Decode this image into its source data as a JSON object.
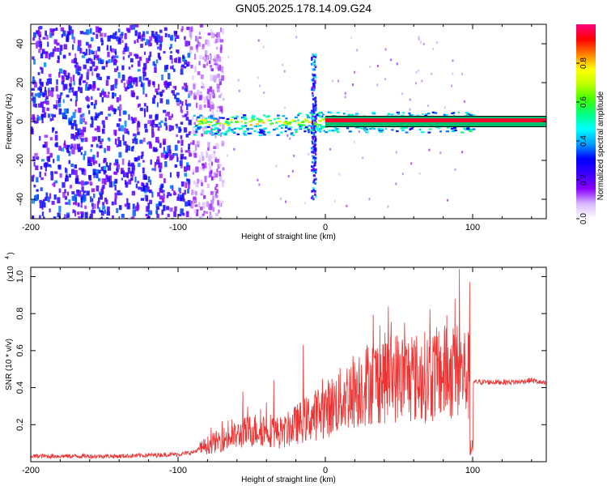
{
  "title": "GN05.2025.178.14.09.G24",
  "chart_data": [
    {
      "type": "heatmap",
      "xlabel": "Height of straight line (km)",
      "ylabel": "Frequency (Hz)",
      "xlim": [
        -200,
        150
      ],
      "ylim": [
        -50,
        50
      ],
      "xticks": [
        -200,
        -100,
        0,
        100
      ],
      "yticks": [
        -40,
        -20,
        0,
        20,
        40
      ],
      "colorbar": {
        "label": "Normalized spectral amplitude",
        "range": [
          0.0,
          1.0
        ],
        "ticks": [
          "0.0",
          "0.2",
          "0.4",
          "0.6",
          "0.8"
        ],
        "colors": [
          "#ffffff",
          "#d8b8ff",
          "#8a00ff",
          "#3a00ff",
          "#0000ff",
          "#00a0ff",
          "#00ffff",
          "#00ff80",
          "#40ff00",
          "#c0ff00",
          "#ffff00",
          "#ff8000",
          "#ff0000",
          "#ff0080"
        ]
      },
      "regions": [
        {
          "name": "noise",
          "x": [
            -200,
            -78
          ],
          "freq": [
            -50,
            50
          ],
          "amplitude": 0.25
        },
        {
          "name": "signal-trace",
          "x": [
            -90,
            100
          ],
          "freq": [
            -4,
            4
          ],
          "amplitude": 0.75
        },
        {
          "name": "spike",
          "x": [
            -10,
            -7
          ],
          "freq": [
            -40,
            35
          ],
          "amplitude": 0.3
        },
        {
          "name": "tone",
          "x": [
            0,
            150
          ],
          "freq": [
            0,
            1
          ],
          "amplitude": 0.95
        }
      ]
    },
    {
      "type": "line",
      "xlabel": "Height of straight line (km)",
      "ylabel": "SNR (10 * v/v)",
      "yunit": "(x10^4)",
      "xlim": [
        -200,
        150
      ],
      "ylim": [
        0.0,
        1.05
      ],
      "xticks": [
        -200,
        -100,
        0,
        100
      ],
      "yticks": [
        0.2,
        0.4,
        0.6,
        0.8,
        1.0
      ],
      "color": "#ee3333",
      "series": [
        {
          "x": [
            -200,
            -180,
            -160,
            -140,
            -120,
            -100,
            -90,
            -80,
            -70,
            -60,
            -50,
            -40,
            -30,
            -20,
            -10,
            0,
            10,
            20,
            30,
            40,
            50,
            60,
            70,
            80,
            90,
            95,
            100,
            110,
            120,
            130,
            140,
            150
          ],
          "values": [
            0.03,
            0.03,
            0.03,
            0.03,
            0.035,
            0.04,
            0.05,
            0.09,
            0.12,
            0.14,
            0.17,
            0.18,
            0.15,
            0.2,
            0.24,
            0.28,
            0.33,
            0.39,
            0.43,
            0.45,
            0.46,
            0.45,
            0.46,
            0.48,
            0.49,
            0.48,
            0.43,
            0.43,
            0.43,
            0.43,
            0.44,
            0.42
          ],
          "peaks": [
            [
              -70,
              0.22
            ],
            [
              -56,
              0.38
            ],
            [
              -40,
              0.32
            ],
            [
              -35,
              0.44
            ],
            [
              -15,
              0.63
            ],
            [
              -5,
              0.39
            ],
            [
              40,
              0.57
            ],
            [
              60,
              0.63
            ],
            [
              74,
              0.68
            ],
            [
              82,
              0.72
            ],
            [
              88,
              0.88
            ],
            [
              91,
              1.04
            ],
            [
              98,
              0.97
            ]
          ]
        }
      ]
    }
  ]
}
